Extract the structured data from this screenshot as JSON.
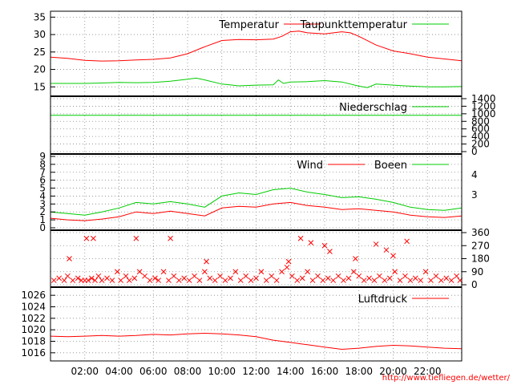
{
  "credit": "http://www.tiefliegen.de/wetter/",
  "x_ticks": [
    "02:00",
    "04:00",
    "06:00",
    "08:00",
    "10:00",
    "12:00",
    "14:00",
    "16:00",
    "18:00",
    "20:00",
    "22:00"
  ],
  "colors": {
    "red": "#ff0000",
    "green": "#00cc00",
    "grid": "#888888",
    "frame": "#000000",
    "credit": "#ff0000"
  },
  "chart_data": [
    {
      "type": "line",
      "x_unit": "hour of day",
      "xlim": [
        0,
        24
      ],
      "ylim": [
        13,
        36
      ],
      "y_ticks": [
        15,
        20,
        25,
        30,
        35
      ],
      "grid": true,
      "legend_placement": "top-right",
      "series": [
        {
          "name": "Temperatur",
          "color": "#ff0000",
          "x": [
            0,
            1,
            2,
            3,
            4,
            5,
            6,
            7,
            8,
            9,
            10,
            11,
            12,
            13,
            13.5,
            14,
            14.5,
            15,
            16,
            17,
            17.5,
            18,
            19,
            20,
            21,
            22,
            23,
            24
          ],
          "values": [
            23.5,
            23.2,
            22.6,
            22.4,
            22.5,
            22.7,
            22.9,
            23.3,
            24.5,
            26.5,
            28.3,
            28.6,
            28.5,
            28.7,
            29.5,
            30.8,
            31.0,
            30.5,
            30.2,
            30.8,
            30.5,
            29.5,
            27.0,
            25.3,
            24.5,
            23.5,
            23.0,
            22.5
          ]
        },
        {
          "name": "Taupunkttemperatur",
          "color": "#00cc00",
          "x": [
            0,
            1,
            2,
            3,
            4,
            5,
            6,
            7,
            8,
            8.5,
            9,
            10,
            11,
            12,
            13,
            13.3,
            13.6,
            14,
            15,
            16,
            17,
            18,
            18.5,
            19,
            20,
            21,
            22,
            23,
            24
          ],
          "values": [
            16.0,
            16.0,
            16.0,
            16.1,
            16.3,
            16.2,
            16.3,
            16.6,
            17.2,
            17.5,
            17.0,
            15.8,
            15.3,
            15.5,
            15.6,
            17.0,
            16.0,
            16.4,
            16.5,
            16.8,
            16.4,
            15.2,
            14.8,
            15.8,
            15.5,
            15.2,
            15.0,
            15.0,
            15.1
          ]
        }
      ]
    },
    {
      "type": "line",
      "x_unit": "hour of day",
      "xlim": [
        0,
        24
      ],
      "ylim": [
        0,
        1400
      ],
      "y_ticks": [
        0,
        200,
        400,
        600,
        800,
        1000,
        1200,
        1400
      ],
      "y_axis_side": "right",
      "grid": true,
      "legend_placement": "top-right",
      "series": [
        {
          "name": "Niederschlag",
          "color": "#00cc00",
          "x": [
            0,
            24
          ],
          "values": [
            960,
            960
          ]
        }
      ]
    },
    {
      "type": "line",
      "x_unit": "hour of day",
      "xlim": [
        0,
        24
      ],
      "ylim": [
        0,
        9
      ],
      "y_ticks": [
        0,
        1,
        2,
        3,
        4,
        5,
        6,
        7,
        8,
        9
      ],
      "right_axis_labels": [
        "4",
        "3"
      ],
      "grid": true,
      "legend_placement": "top-right",
      "series": [
        {
          "name": "Wind",
          "color": "#ff0000",
          "x": [
            0,
            1,
            2,
            3,
            4,
            5,
            6,
            7,
            8,
            9,
            10,
            11,
            12,
            13,
            14,
            15,
            16,
            17,
            18,
            19,
            20,
            21,
            22,
            23,
            24
          ],
          "values": [
            1.2,
            1.0,
            0.9,
            1.1,
            1.4,
            2.0,
            1.8,
            2.1,
            1.8,
            1.5,
            2.5,
            2.7,
            2.6,
            3.0,
            3.2,
            2.8,
            2.6,
            2.3,
            2.4,
            2.2,
            2.0,
            1.6,
            1.4,
            1.3,
            1.5
          ]
        },
        {
          "name": "Boeen",
          "color": "#00cc00",
          "x": [
            0,
            1,
            2,
            3,
            4,
            5,
            6,
            7,
            8,
            9,
            10,
            11,
            12,
            13,
            14,
            15,
            16,
            17,
            18,
            19,
            20,
            21,
            22,
            23,
            24
          ],
          "values": [
            2.0,
            1.8,
            1.6,
            2.0,
            2.5,
            3.2,
            3.0,
            3.3,
            3.0,
            2.6,
            4.0,
            4.4,
            4.2,
            4.8,
            5.0,
            4.5,
            4.2,
            3.8,
            3.9,
            3.6,
            3.2,
            2.6,
            2.3,
            2.2,
            2.5
          ]
        }
      ]
    },
    {
      "type": "scatter",
      "x_unit": "hour of day",
      "xlim": [
        0,
        24
      ],
      "ylim": [
        0,
        360
      ],
      "y_ticks": [
        0,
        90,
        180,
        270,
        360
      ],
      "y_axis_side": "right",
      "grid": true,
      "series": [
        {
          "name": "",
          "color": "#ff0000",
          "x": [
            0.2,
            0.5,
            0.8,
            1.0,
            1.3,
            1.6,
            1.8,
            2.0,
            2.2,
            2.4,
            2.6,
            2.8,
            3.0,
            3.3,
            3.6,
            3.9,
            4.1,
            4.4,
            4.6,
            4.9,
            5.2,
            5.5,
            5.8,
            6.1,
            6.3,
            6.6,
            6.9,
            7.2,
            7.5,
            7.8,
            8.1,
            8.4,
            8.7,
            9.0,
            9.3,
            9.6,
            9.9,
            10.2,
            10.5,
            10.8,
            11.1,
            11.4,
            11.7,
            12.0,
            12.3,
            12.6,
            12.9,
            13.2,
            13.5,
            13.8,
            14.1,
            14.4,
            14.7,
            15.0,
            15.3,
            15.6,
            15.9,
            16.2,
            16.5,
            16.8,
            17.1,
            17.4,
            17.7,
            18.0,
            18.3,
            18.6,
            18.9,
            19.2,
            19.5,
            19.8,
            20.1,
            20.4,
            20.7,
            21.0,
            21.3,
            21.6,
            21.9,
            22.2,
            22.5,
            22.8,
            23.1,
            23.4,
            23.7,
            23.9,
            1.1,
            2.1,
            2.5,
            5.0,
            7.0,
            9.1,
            13.9,
            14.6,
            15.2,
            16.0,
            16.3,
            17.8,
            19.0,
            19.6,
            20.0,
            20.8
          ],
          "values": [
            30,
            45,
            30,
            60,
            30,
            45,
            30,
            30,
            30,
            45,
            30,
            60,
            30,
            45,
            30,
            90,
            30,
            60,
            30,
            45,
            90,
            60,
            30,
            45,
            30,
            90,
            30,
            60,
            30,
            45,
            30,
            60,
            30,
            90,
            45,
            30,
            60,
            30,
            45,
            90,
            30,
            60,
            30,
            45,
            90,
            30,
            60,
            30,
            90,
            120,
            60,
            30,
            45,
            90,
            30,
            60,
            30,
            45,
            30,
            60,
            30,
            45,
            90,
            60,
            30,
            45,
            30,
            60,
            30,
            45,
            90,
            30,
            60,
            30,
            45,
            30,
            90,
            30,
            60,
            30,
            45,
            30,
            60,
            30,
            180,
            320,
            320,
            320,
            320,
            160,
            160,
            320,
            290,
            270,
            230,
            180,
            280,
            240,
            200,
            300
          ]
        }
      ]
    },
    {
      "type": "line",
      "x_unit": "hour of day",
      "xlim": [
        0,
        24
      ],
      "ylim": [
        1015,
        1027
      ],
      "y_ticks": [
        1016,
        1018,
        1020,
        1022,
        1024,
        1026
      ],
      "grid": true,
      "legend_placement": "top-right",
      "series": [
        {
          "name": "Luftdruck",
          "color": "#ff0000",
          "x": [
            0,
            1,
            2,
            3,
            4,
            5,
            6,
            7,
            8,
            9,
            10,
            11,
            12,
            13,
            14,
            15,
            16,
            17,
            18,
            19,
            20,
            21,
            22,
            23,
            24
          ],
          "values": [
            1018.9,
            1018.8,
            1018.9,
            1019.0,
            1018.9,
            1019.0,
            1019.2,
            1019.1,
            1019.3,
            1019.4,
            1019.3,
            1019.1,
            1018.8,
            1018.2,
            1017.8,
            1017.4,
            1017.0,
            1016.6,
            1016.8,
            1017.1,
            1017.3,
            1017.2,
            1017.0,
            1016.8,
            1016.7
          ]
        }
      ]
    }
  ]
}
